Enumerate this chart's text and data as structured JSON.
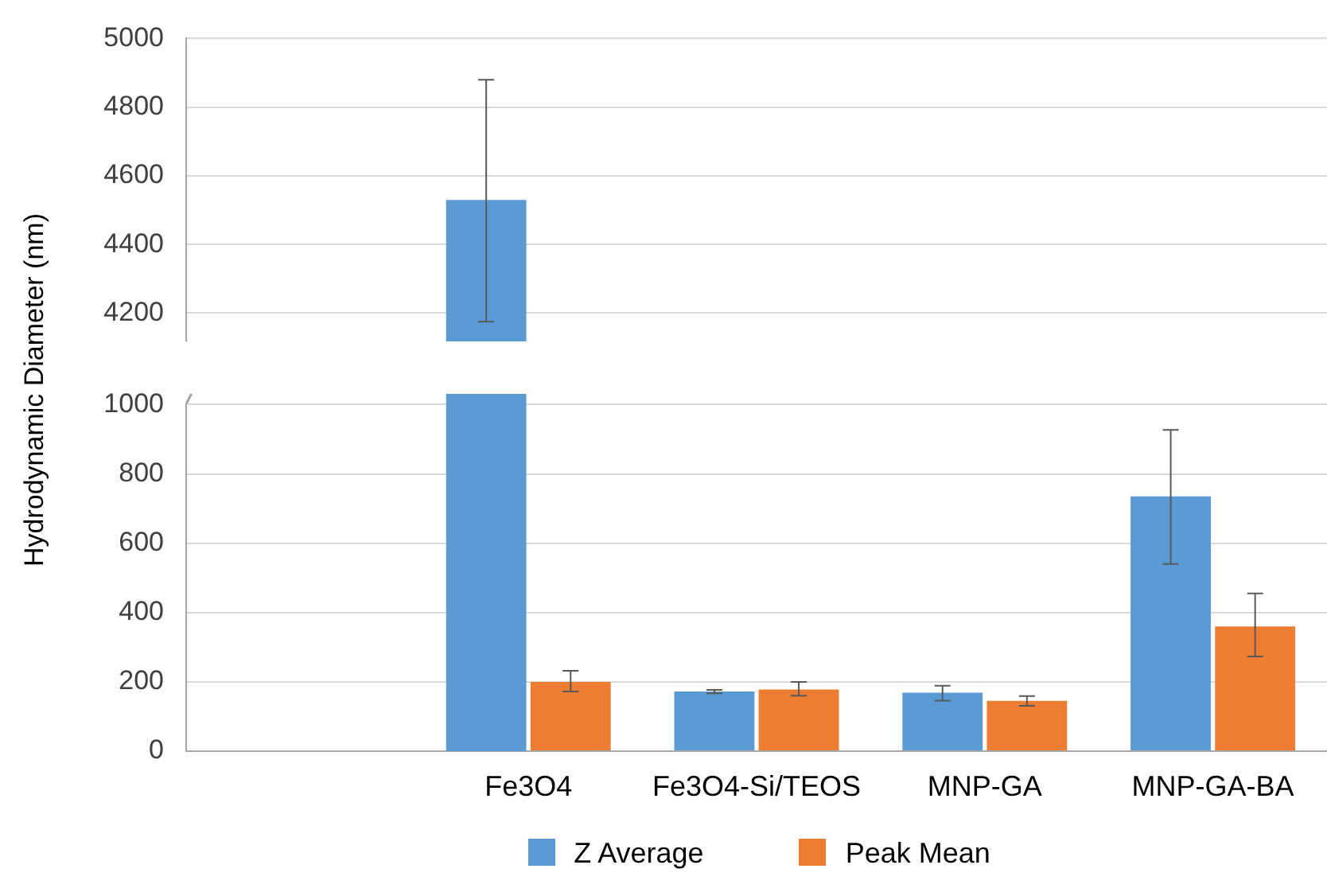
{
  "chart_data": [
    {
      "type": "bar",
      "categories": [
        null,
        null,
        null,
        null,
        null
      ],
      "ylim": [
        4120,
        5000
      ],
      "yticks": [
        4200,
        4400,
        4600,
        4800,
        5000
      ],
      "grid": "y",
      "tick_labels": "y",
      "series": [
        {
          "color": "#5b9bd5",
          "values": [
            null,
            4530,
            null,
            null,
            null
          ],
          "errors": [
            null,
            [
              4175,
              4880
            ],
            null,
            null,
            null
          ]
        }
      ]
    },
    {
      "type": "bar",
      "categories": [
        null,
        "Fe3O4",
        "Fe3O4-Si/TEOS",
        "MNP-GA",
        "MNP-GA-BA"
      ],
      "ylim": [
        0,
        1000
      ],
      "yticks": [
        0,
        200,
        400,
        600,
        800,
        1000
      ],
      "grid": "y",
      "legend": "bottom",
      "ylabel": "Hydrodynamic  Diameter (nm)",
      "series": [
        {
          "name": "Z Average",
          "color": "#5b9bd5",
          "values": [
            null,
            null,
            172,
            169,
            735
          ],
          "errors": [
            null,
            null,
            [
              167,
              177
            ],
            [
              146,
              189
            ],
            [
              540,
              927
            ]
          ]
        },
        {
          "name": "Peak Mean",
          "color": "#ed7d31",
          "values": [
            null,
            200,
            178,
            145,
            360
          ],
          "errors": [
            null,
            [
              172,
              232
            ],
            [
              160,
              200
            ],
            [
              131,
              159
            ],
            [
              273,
              455
            ]
          ]
        }
      ]
    }
  ]
}
